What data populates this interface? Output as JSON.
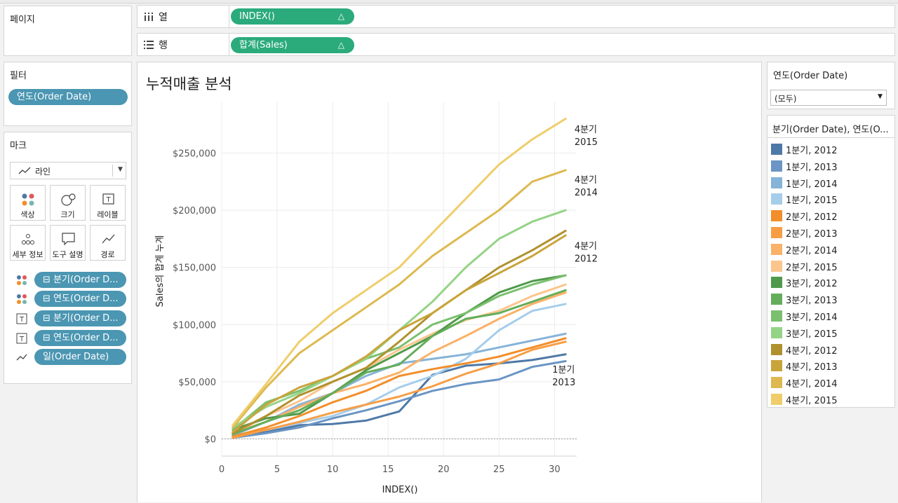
{
  "panels": {
    "pages_title": "페이지",
    "filters_title": "필터",
    "marks_title": "마크"
  },
  "filters": {
    "pill": "연도(Order Date)"
  },
  "columns": {
    "label": "열",
    "pill": "INDEX()",
    "pill_icon": "△"
  },
  "rows": {
    "label": "행",
    "pill": "합계(Sales)",
    "pill_icon": "△"
  },
  "marks": {
    "type_label": "라인",
    "buttons": [
      {
        "label": "색상",
        "icon": "color-dots-icon"
      },
      {
        "label": "크기",
        "icon": "size-icon"
      },
      {
        "label": "레이블",
        "icon": "label-icon"
      },
      {
        "label": "세부 정보",
        "icon": "detail-icon"
      },
      {
        "label": "도구 설명",
        "icon": "tooltip-icon"
      },
      {
        "label": "경로",
        "icon": "path-icon"
      }
    ],
    "fields": [
      {
        "icon": "color-dots-icon",
        "label": "⊟ 분기(Order D..."
      },
      {
        "icon": "color-dots-icon",
        "label": "⊟ 연도(Order D..."
      },
      {
        "icon": "label-icon",
        "label": "⊟ 분기(Order D..."
      },
      {
        "icon": "label-icon",
        "label": "⊟ 연도(Order D..."
      },
      {
        "icon": "path-icon",
        "label": "일(Order Date)"
      }
    ]
  },
  "filter_card": {
    "title": "연도(Order Date)",
    "selected": "(모두)"
  },
  "legend": {
    "title": "분기(Order Date), 연도(O...",
    "items": [
      {
        "label": "1분기, 2012",
        "color": "#4e79a7"
      },
      {
        "label": "1분기, 2013",
        "color": "#6a95c4"
      },
      {
        "label": "1분기, 2014",
        "color": "#86b3d8"
      },
      {
        "label": "1분기, 2015",
        "color": "#a6cdea"
      },
      {
        "label": "2분기, 2012",
        "color": "#f28e2b"
      },
      {
        "label": "2분기, 2013",
        "color": "#f79e45"
      },
      {
        "label": "2분기, 2014",
        "color": "#fab168"
      },
      {
        "label": "2분기, 2015",
        "color": "#fcc58c"
      },
      {
        "label": "3분기, 2012",
        "color": "#4f9a4a"
      },
      {
        "label": "3분기, 2013",
        "color": "#64ad5b"
      },
      {
        "label": "3분기, 2014",
        "color": "#7bc06e"
      },
      {
        "label": "3분기, 2015",
        "color": "#95d387"
      },
      {
        "label": "4분기, 2012",
        "color": "#b0912e"
      },
      {
        "label": "4분기, 2013",
        "color": "#c9a43b"
      },
      {
        "label": "4분기, 2014",
        "color": "#ddb94f"
      },
      {
        "label": "4분기, 2015",
        "color": "#efcd6a"
      }
    ]
  },
  "chart_data": {
    "type": "line",
    "title": "누적매출 분석",
    "xlabel": "INDEX()",
    "ylabel": "Sales의 합계 누계",
    "xlim": [
      0,
      32
    ],
    "ylim": [
      -15000,
      295000
    ],
    "x_ticks": [
      0,
      5,
      10,
      15,
      20,
      25,
      30
    ],
    "y_ticks": [
      0,
      50000,
      100000,
      150000,
      200000,
      250000
    ],
    "y_tick_labels": [
      "$0",
      "$50,000",
      "$100,000",
      "$150,000",
      "$200,000",
      "$250,000"
    ],
    "x": [
      1,
      4,
      7,
      10,
      13,
      16,
      19,
      22,
      25,
      28,
      31
    ],
    "series": [
      {
        "name": "1분기, 2012",
        "color": "#4e79a7",
        "values": [
          2000,
          6000,
          12000,
          13000,
          16000,
          24000,
          56000,
          64000,
          66000,
          69000,
          74000
        ]
      },
      {
        "name": "1분기, 2013",
        "color": "#6a95c4",
        "values": [
          1000,
          5000,
          10000,
          18000,
          25000,
          33000,
          42000,
          48000,
          52000,
          63000,
          68000
        ]
      },
      {
        "name": "1분기, 2014",
        "color": "#86b3d8",
        "values": [
          3000,
          15000,
          30000,
          40000,
          55000,
          66000,
          70000,
          74000,
          80000,
          86000,
          92000
        ]
      },
      {
        "name": "1분기, 2015",
        "color": "#a6cdea",
        "values": [
          2000,
          8000,
          14000,
          20000,
          30000,
          45000,
          55000,
          70000,
          95000,
          112000,
          118000
        ]
      },
      {
        "name": "2분기, 2012",
        "color": "#f28e2b",
        "values": [
          2000,
          10000,
          20000,
          32000,
          42000,
          55000,
          61000,
          66000,
          72000,
          80000,
          88000
        ]
      },
      {
        "name": "2분기, 2013",
        "color": "#f79e45",
        "values": [
          1000,
          8000,
          15000,
          23000,
          30000,
          37000,
          46000,
          57000,
          66000,
          78000,
          85000
        ]
      },
      {
        "name": "2분기, 2014",
        "color": "#fab168",
        "values": [
          5000,
          15000,
          28000,
          40000,
          48000,
          58000,
          76000,
          90000,
          105000,
          118000,
          128000
        ]
      },
      {
        "name": "2분기, 2015",
        "color": "#fcc58c",
        "values": [
          4000,
          20000,
          33000,
          50000,
          62000,
          78000,
          92000,
          104000,
          112000,
          125000,
          135000
        ]
      },
      {
        "name": "3분기, 2012",
        "color": "#4f9a4a",
        "values": [
          8000,
          18000,
          22000,
          40000,
          60000,
          75000,
          90000,
          110000,
          128000,
          138000,
          143000
        ]
      },
      {
        "name": "3분기, 2013",
        "color": "#64ad5b",
        "values": [
          4000,
          15000,
          25000,
          40000,
          58000,
          65000,
          90000,
          105000,
          110000,
          120000,
          130000
        ]
      },
      {
        "name": "3분기, 2014",
        "color": "#7bc06e",
        "values": [
          8000,
          32000,
          42000,
          55000,
          70000,
          80000,
          100000,
          110000,
          125000,
          135000,
          143000
        ]
      },
      {
        "name": "3분기, 2015",
        "color": "#95d387",
        "values": [
          10000,
          28000,
          40000,
          55000,
          70000,
          95000,
          120000,
          150000,
          175000,
          190000,
          200000
        ]
      },
      {
        "name": "4분기, 2012",
        "color": "#b0912e",
        "values": [
          5000,
          20000,
          38000,
          50000,
          62000,
          85000,
          110000,
          130000,
          150000,
          165000,
          182000
        ]
      },
      {
        "name": "4분기, 2013",
        "color": "#c9a43b",
        "values": [
          6000,
          30000,
          45000,
          55000,
          72000,
          95000,
          110000,
          130000,
          145000,
          160000,
          178000
        ]
      },
      {
        "name": "4분기, 2014",
        "color": "#ddb94f",
        "values": [
          10000,
          45000,
          75000,
          95000,
          115000,
          135000,
          160000,
          180000,
          200000,
          225000,
          235000
        ]
      },
      {
        "name": "4분기, 2015",
        "color": "#efcd6a",
        "values": [
          12000,
          48000,
          85000,
          110000,
          130000,
          150000,
          180000,
          210000,
          240000,
          262000,
          280000
        ]
      }
    ],
    "annotations": [
      {
        "line1": "4분기",
        "line2": "2015",
        "x": 31.8,
        "y": 268000
      },
      {
        "line1": "4분기",
        "line2": "2014",
        "x": 31.8,
        "y": 224000
      },
      {
        "line1": "4분기",
        "line2": "2012",
        "x": 31.8,
        "y": 166000
      },
      {
        "line1": "1분기",
        "line2": "2013",
        "x": 29.8,
        "y": 58000
      }
    ]
  }
}
